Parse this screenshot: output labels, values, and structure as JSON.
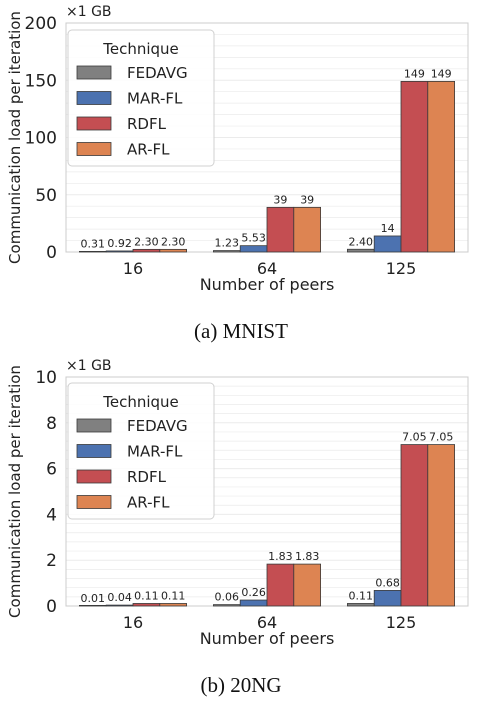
{
  "legend_title": "Technique",
  "xlabel": "Number of peers",
  "ylabel": "Communication load per iteration",
  "categories": [
    "16",
    "64",
    "125"
  ],
  "series_names": [
    "FEDAVG",
    "MAR-FL",
    "RDFL",
    "AR-FL"
  ],
  "colors": {
    "FEDAVG": "#808080",
    "MAR-FL": "#4c72b0",
    "RDFL": "#c44e52",
    "AR-FL": "#dd8452",
    "grid": "#ebebeb",
    "axes_edge": "#cccccc",
    "text": "#222222"
  },
  "chart_data": [
    {
      "type": "bar",
      "caption": "(a) MNIST",
      "scale_label": "×1 GB",
      "xlabel": "Number of peers",
      "ylabel": "Communication load per iteration",
      "categories": [
        "16",
        "64",
        "125"
      ],
      "ylim": [
        0,
        200
      ],
      "yticks": [
        0,
        50,
        100,
        150,
        200
      ],
      "legend_position": "top-left",
      "grid": true,
      "series": [
        {
          "name": "FEDAVG",
          "values": [
            0.31,
            1.23,
            2.4
          ],
          "labels": [
            "0.31",
            "1.23",
            "2.40"
          ]
        },
        {
          "name": "MAR-FL",
          "values": [
            0.92,
            5.53,
            14
          ],
          "labels": [
            "0.92",
            "5.53",
            "14"
          ]
        },
        {
          "name": "RDFL",
          "values": [
            2.3,
            39,
            149
          ],
          "labels": [
            "2.30",
            "39",
            "149"
          ]
        },
        {
          "name": "AR-FL",
          "values": [
            2.3,
            39,
            149
          ],
          "labels": [
            "2.30",
            "39",
            "149"
          ]
        }
      ]
    },
    {
      "type": "bar",
      "caption": "(b) 20NG",
      "scale_label": "×1 GB",
      "xlabel": "Number of peers",
      "ylabel": "Communication load per iteration",
      "categories": [
        "16",
        "64",
        "125"
      ],
      "ylim": [
        0,
        10
      ],
      "yticks": [
        0,
        2,
        4,
        6,
        8,
        10
      ],
      "legend_position": "top-left",
      "grid": true,
      "series": [
        {
          "name": "FEDAVG",
          "values": [
            0.01,
            0.06,
            0.11
          ],
          "labels": [
            "0.01",
            "0.06",
            "0.11"
          ]
        },
        {
          "name": "MAR-FL",
          "values": [
            0.04,
            0.26,
            0.68
          ],
          "labels": [
            "0.04",
            "0.26",
            "0.68"
          ]
        },
        {
          "name": "RDFL",
          "values": [
            0.11,
            1.83,
            7.05
          ],
          "labels": [
            "0.11",
            "1.83",
            "7.05"
          ]
        },
        {
          "name": "AR-FL",
          "values": [
            0.11,
            1.83,
            7.05
          ],
          "labels": [
            "0.11",
            "1.83",
            "7.05"
          ]
        }
      ]
    }
  ]
}
